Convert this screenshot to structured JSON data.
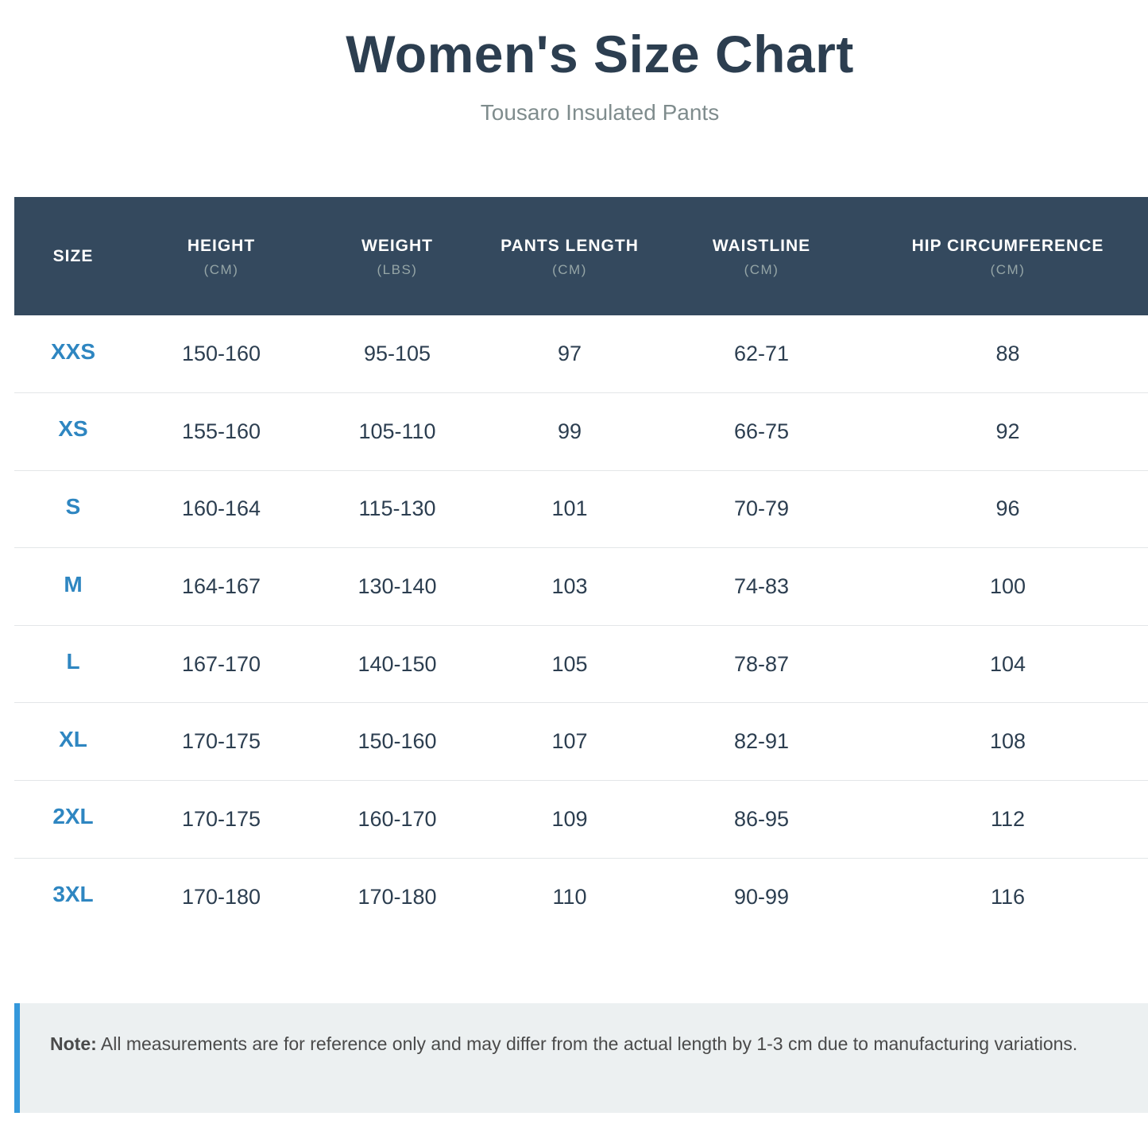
{
  "header": {
    "title": "Women's Size Chart",
    "subtitle": "Tousaro Insulated Pants"
  },
  "table": {
    "columns": [
      {
        "label": "SIZE",
        "unit": ""
      },
      {
        "label": "HEIGHT",
        "unit": "(CM)"
      },
      {
        "label": "WEIGHT",
        "unit": "(LBS)"
      },
      {
        "label": "PANTS LENGTH",
        "unit": "(CM)"
      },
      {
        "label": "WAISTLINE",
        "unit": "(CM)"
      },
      {
        "label": "HIP CIRCUMFERENCE",
        "unit": "(CM)"
      }
    ],
    "rows": [
      {
        "size": "XXS",
        "height": "150-160",
        "weight": "95-105",
        "pants_length": "97",
        "waistline": "62-71",
        "hip": "88"
      },
      {
        "size": "XS",
        "height": "155-160",
        "weight": "105-110",
        "pants_length": "99",
        "waistline": "66-75",
        "hip": "92"
      },
      {
        "size": "S",
        "height": "160-164",
        "weight": "115-130",
        "pants_length": "101",
        "waistline": "70-79",
        "hip": "96"
      },
      {
        "size": "M",
        "height": "164-167",
        "weight": "130-140",
        "pants_length": "103",
        "waistline": "74-83",
        "hip": "100"
      },
      {
        "size": "L",
        "height": "167-170",
        "weight": "140-150",
        "pants_length": "105",
        "waistline": "78-87",
        "hip": "104"
      },
      {
        "size": "XL",
        "height": "170-175",
        "weight": "150-160",
        "pants_length": "107",
        "waistline": "82-91",
        "hip": "108"
      },
      {
        "size": "2XL",
        "height": "170-175",
        "weight": "160-170",
        "pants_length": "109",
        "waistline": "86-95",
        "hip": "112"
      },
      {
        "size": "3XL",
        "height": "170-180",
        "weight": "170-180",
        "pants_length": "110",
        "waistline": "90-99",
        "hip": "116"
      }
    ]
  },
  "note": {
    "label": "Note:",
    "text": " All measurements are for reference only and may differ from the actual length by 1-3 cm due to manufacturing variations."
  },
  "colors": {
    "header_bg": "#34495e",
    "size_text": "#2e86c1",
    "note_accent": "#3498db",
    "note_bg": "#ecf0f1"
  }
}
